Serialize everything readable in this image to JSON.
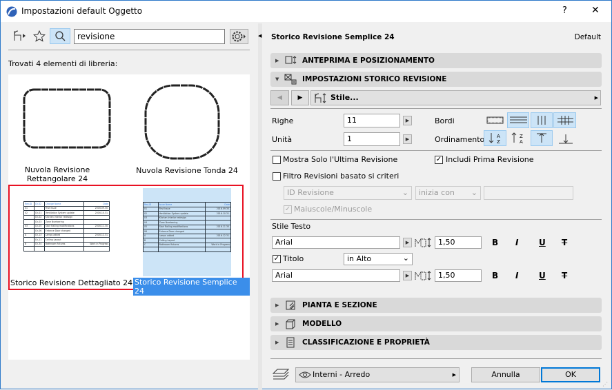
{
  "window": {
    "title": "Impostazioni default Oggetto",
    "help": "?",
    "close": "✕"
  },
  "left": {
    "search_value": "revisione",
    "found_label": "Trovati 4 elementi di libreria:",
    "items": [
      {
        "label": "Nuvola Revisione Rettangolare 24"
      },
      {
        "label": "Nuvola Revisione Tonda 24"
      },
      {
        "label": "Storico Revisione Dettagliato 24"
      },
      {
        "label": "Storico Revisione Semplice 24",
        "selected": true
      }
    ],
    "detailed_table": {
      "headers": [
        "Rev.ID",
        "Ch.ID",
        "Change Name",
        "Date"
      ],
      "rows": [
        [
          "01",
          "",
          "First Issue",
          "2016.09.30."
        ],
        [
          "02",
          "Ch-01",
          "Ventilation System update",
          "2016.10.31."
        ],
        [
          "",
          "Ch-02",
          "Kitchen interior redesign",
          ""
        ],
        [
          "",
          "Ch-03",
          "Zone Numbering",
          ""
        ],
        [
          "03",
          "Ch-05",
          "Stair Railing modifications",
          "2016.11.30."
        ],
        [
          "",
          "Ch-06",
          "Entance Door changed",
          ""
        ],
        [
          "A",
          "Ch-13",
          "Lamps added",
          "2016.12.31."
        ],
        [
          "",
          "Ch-21",
          "Ceiling Layout",
          ""
        ],
        [
          "B",
          "Ch-34",
          "Bathroom fixtures",
          "Work in Progress"
        ],
        [
          "",
          "",
          "",
          ""
        ]
      ]
    },
    "simple_table": {
      "headers": [
        "Rev.ID",
        "Issue Name",
        "Date"
      ],
      "rows": [
        [
          "01",
          "First Issue",
          "2016.09.30."
        ],
        [
          "02",
          "Ventilation System update",
          "2016.10.31."
        ],
        [
          "03",
          "Kitchen interior redesign",
          ""
        ],
        [
          "04",
          "Zone Numbering",
          ""
        ],
        [
          "05",
          "Stair Railing modifications",
          "2016.11.30."
        ],
        [
          "06",
          "Entance Door changed",
          ""
        ],
        [
          "A",
          "Lamps added",
          "2016.12.31."
        ],
        [
          "B",
          "Ceiling Layout",
          ""
        ],
        [
          "C",
          "Bathroom fixtures",
          "Work in Progress"
        ],
        [
          "",
          "",
          ""
        ]
      ]
    }
  },
  "right": {
    "object_name": "Storico Revisione Semplice 24",
    "default_label": "Default",
    "sections": {
      "preview": "ANTEPRIMA E POSIZIONAMENTO",
      "revision": "IMPOSTAZIONI STORICO REVISIONE",
      "plan": "PIANTA E SEZIONE",
      "model": "MODELLO",
      "classification": "CLASSIFICAZIONE E PROPRIETÀ"
    },
    "style_label": "Stile...",
    "rows_label": "Righe",
    "rows_value": "11",
    "units_label": "Unità",
    "units_value": "1",
    "borders_label": "Bordi",
    "sort_label": "Ordinamento",
    "show_last_label": "Mostra Solo l'Ultima Revisione",
    "show_last": false,
    "include_first_label": "Includi Prima Revisione",
    "include_first": true,
    "filter_label": "Filtro Revisioni basato si criteri",
    "filter": false,
    "filter_field": "ID Revisione",
    "filter_op": "inizia con",
    "filter_value": "",
    "case_label": "Maiuscole/Minuscole",
    "case": true,
    "text_style_label": "Stile Testo",
    "font1": "Arial",
    "size1": "1,50",
    "title_label": "Titolo",
    "title_checked": true,
    "title_pos": "in Alto",
    "font2": "Arial",
    "size2": "1,50",
    "fmt": {
      "bold": "B",
      "italic": "I",
      "underline": "U",
      "strike": "T"
    },
    "layer": "Interni - Arredo",
    "cancel": "Annulla",
    "ok": "OK"
  }
}
